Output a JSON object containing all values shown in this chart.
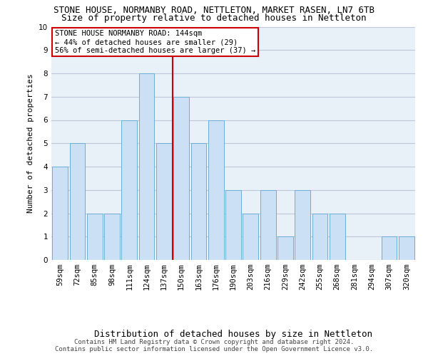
{
  "title": "STONE HOUSE, NORMANBY ROAD, NETTLETON, MARKET RASEN, LN7 6TB",
  "subtitle": "Size of property relative to detached houses in Nettleton",
  "xlabel": "Distribution of detached houses by size in Nettleton",
  "ylabel": "Number of detached properties",
  "categories": [
    "59sqm",
    "72sqm",
    "85sqm",
    "98sqm",
    "111sqm",
    "124sqm",
    "137sqm",
    "150sqm",
    "163sqm",
    "176sqm",
    "190sqm",
    "203sqm",
    "216sqm",
    "229sqm",
    "242sqm",
    "255sqm",
    "268sqm",
    "281sqm",
    "294sqm",
    "307sqm",
    "320sqm"
  ],
  "values": [
    4,
    5,
    2,
    2,
    6,
    8,
    5,
    7,
    5,
    6,
    3,
    2,
    3,
    1,
    3,
    2,
    2,
    0,
    0,
    1,
    1
  ],
  "bar_color": "#cce0f5",
  "bar_edgecolor": "#6baed6",
  "highlight_index": 6,
  "highlight_line_color": "#cc0000",
  "ylim": [
    0,
    10
  ],
  "yticks": [
    0,
    1,
    2,
    3,
    4,
    5,
    6,
    7,
    8,
    9,
    10
  ],
  "annotation_title": "STONE HOUSE NORMANBY ROAD: 144sqm",
  "annotation_line1": "← 44% of detached houses are smaller (29)",
  "annotation_line2": "56% of semi-detached houses are larger (37) →",
  "annotation_box_color": "#ffffff",
  "annotation_box_edgecolor": "#cc0000",
  "footer_line1": "Contains HM Land Registry data © Crown copyright and database right 2024.",
  "footer_line2": "Contains public sector information licensed under the Open Government Licence v3.0.",
  "background_color": "#ffffff",
  "plot_bg_color": "#e8f0f8",
  "grid_color": "#c0c8d8",
  "title_fontsize": 9,
  "subtitle_fontsize": 9,
  "ylabel_fontsize": 8,
  "xlabel_fontsize": 9,
  "tick_fontsize": 7.5,
  "annotation_fontsize": 7.5,
  "footer_fontsize": 6.5
}
